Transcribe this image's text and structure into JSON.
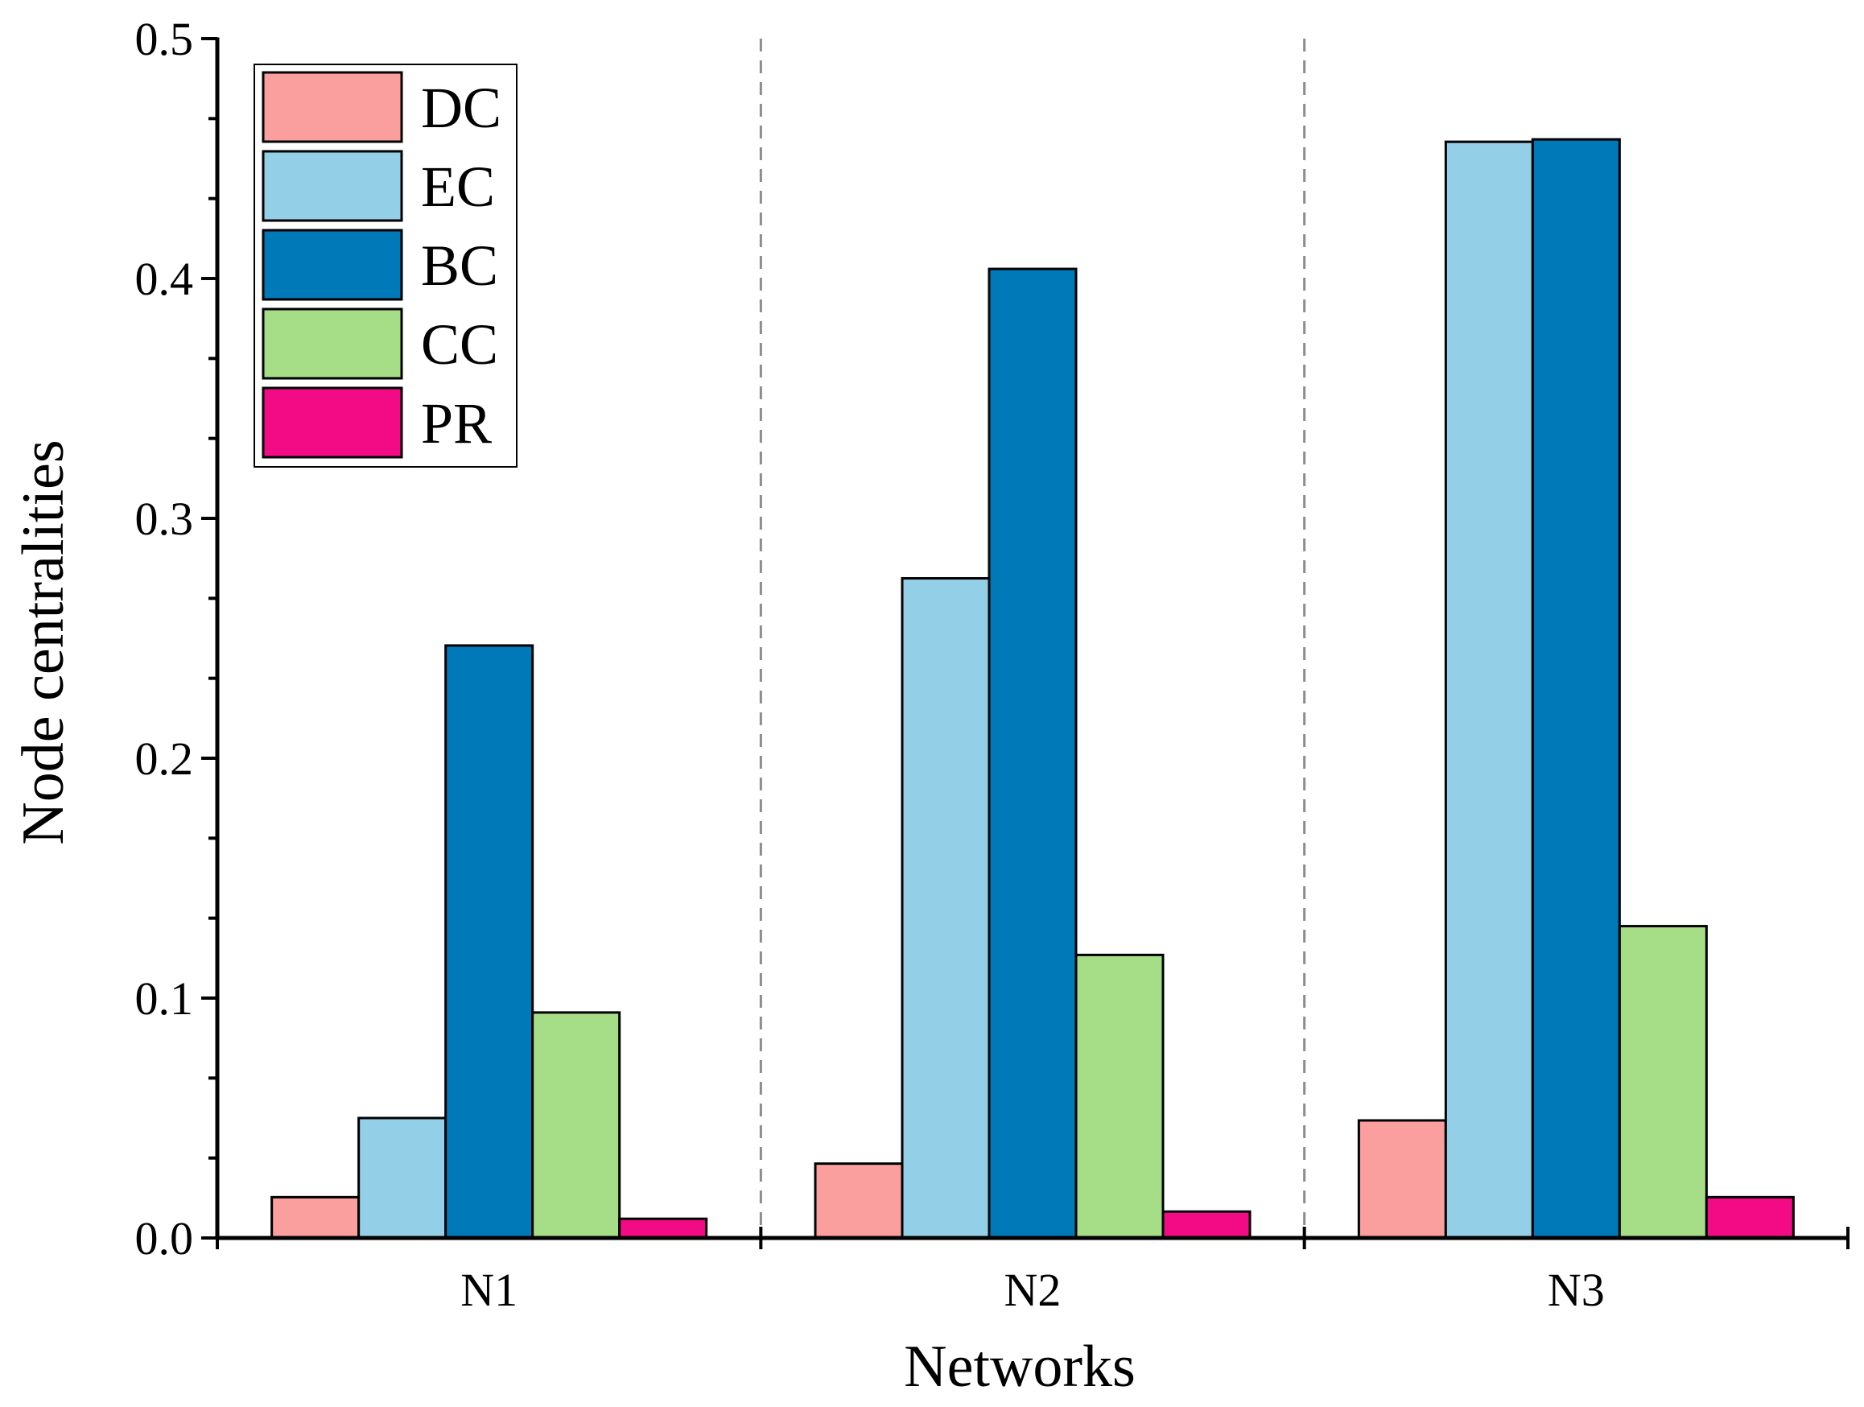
{
  "chart_data": {
    "type": "bar",
    "title": "",
    "xlabel": "Networks",
    "ylabel": "Node centralities",
    "categories": [
      "N1",
      "N2",
      "N3"
    ],
    "ylim": [
      0,
      0.5
    ],
    "yticks": [
      "0.0",
      "0.1",
      "0.2",
      "0.3",
      "0.4",
      "0.5"
    ],
    "ytick_values": [
      0,
      0.1,
      0.2,
      0.3,
      0.4,
      0.5
    ],
    "grid": false,
    "category_separators": "dashed",
    "legend_position": "top-left",
    "series": [
      {
        "name": "DC",
        "color": "#FA9E9E",
        "values": [
          0.017,
          0.031,
          0.049
        ]
      },
      {
        "name": "EC",
        "color": "#94CFE8",
        "values": [
          0.05,
          0.275,
          0.457
        ]
      },
      {
        "name": "BC",
        "color": "#0079B8",
        "values": [
          0.247,
          0.404,
          0.458
        ]
      },
      {
        "name": "CC",
        "color": "#A6DE88",
        "values": [
          0.094,
          0.118,
          0.13
        ]
      },
      {
        "name": "PR",
        "color": "#F20B85",
        "values": [
          0.008,
          0.011,
          0.017
        ]
      }
    ]
  }
}
